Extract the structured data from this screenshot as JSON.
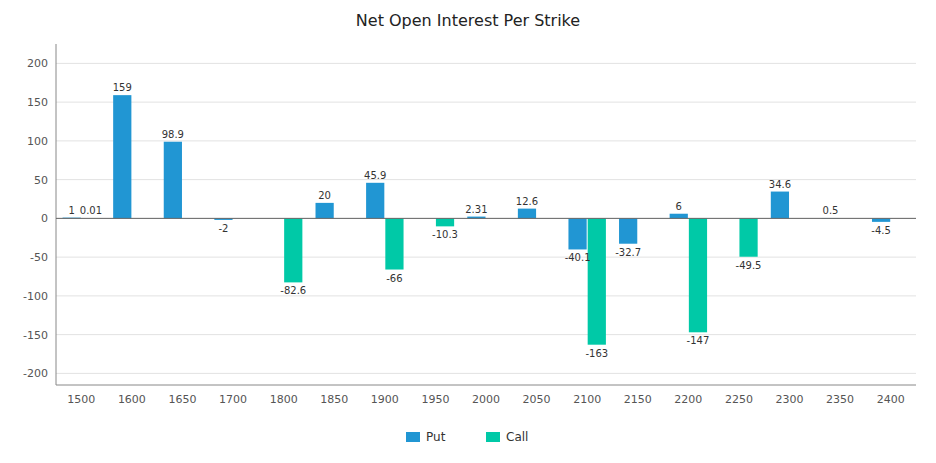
{
  "chart_data": {
    "type": "bar",
    "title": "Net Open Interest Per Strike",
    "categories": [
      "1500",
      "1600",
      "1650",
      "1700",
      "1800",
      "1850",
      "1900",
      "1950",
      "2000",
      "2050",
      "2100",
      "2150",
      "2200",
      "2250",
      "2300",
      "2350",
      "2400"
    ],
    "series": [
      {
        "name": "Put",
        "color": "#2196d3",
        "values": [
          1,
          159,
          98.9,
          -2,
          0,
          20,
          45.9,
          0,
          2.31,
          12.6,
          -40.1,
          -32.7,
          6,
          0,
          34.6,
          0.5,
          -4.5
        ]
      },
      {
        "name": "Call",
        "color": "#00c9a7",
        "values": [
          0.01,
          0,
          0,
          0,
          -82.6,
          0,
          -66,
          -10.3,
          0,
          0,
          -163,
          0,
          -147,
          -49.5,
          0,
          0,
          0
        ]
      }
    ],
    "ylim": [
      -215,
      225
    ],
    "yticks": [
      -200,
      -150,
      -100,
      -50,
      0,
      50,
      100,
      150,
      200
    ],
    "grid": true,
    "legend": "bottom",
    "data_labels": true
  }
}
